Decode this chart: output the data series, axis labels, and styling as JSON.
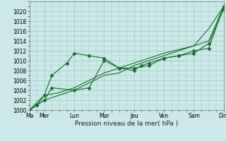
{
  "xlabel": "Pression niveau de la mer( hPa )",
  "ylim": [
    1000,
    1022
  ],
  "yticks": [
    1000,
    1002,
    1004,
    1006,
    1008,
    1010,
    1012,
    1014,
    1016,
    1018,
    1020
  ],
  "xtick_labels": [
    "Ma",
    "Mer",
    "Lun",
    "Mar",
    "Jeu",
    "Ven",
    "Sam",
    "Dim"
  ],
  "xtick_positions": [
    0,
    1,
    3,
    5,
    7,
    9,
    11,
    13
  ],
  "xlim": [
    0,
    13
  ],
  "background_color": "#cce8e8",
  "grid_color": "#99ccbb",
  "line_color": "#1a6e2e",
  "series": [
    {
      "x": [
        0,
        0.5,
        1,
        1.5,
        2.5,
        3,
        4,
        5,
        6,
        7,
        7.5,
        8,
        9,
        10,
        11,
        12,
        13
      ],
      "y": [
        1000,
        1001,
        1003,
        1007,
        1009.5,
        1011.5,
        1011,
        1010.5,
        1008.5,
        1008,
        1009,
        1009.5,
        1010.5,
        1011,
        1012,
        1012.5,
        1021
      ],
      "marker": "D",
      "markersize": 2.5
    },
    {
      "x": [
        0,
        0.5,
        1,
        1.5,
        3,
        4,
        5,
        6,
        7,
        8,
        9,
        10,
        11,
        12,
        13
      ],
      "y": [
        1000,
        1001,
        1002,
        1004.5,
        1004,
        1004.5,
        1010,
        1008.5,
        1008.5,
        1009,
        1010.5,
        1011,
        1011.5,
        1013.5,
        1020.5
      ],
      "marker": "D",
      "markersize": 2.5
    },
    {
      "x": [
        0,
        1,
        2,
        3,
        4,
        5,
        6,
        7,
        8,
        9,
        10,
        11,
        12,
        13
      ],
      "y": [
        1000,
        1002,
        1003,
        1004,
        1005.5,
        1007,
        1007.5,
        1009,
        1010,
        1011,
        1012,
        1013,
        1014,
        1021
      ],
      "marker": null,
      "markersize": 0
    },
    {
      "x": [
        0,
        1,
        2,
        3,
        5,
        7,
        9,
        11,
        12,
        13
      ],
      "y": [
        1000,
        1003,
        1003.5,
        1004.5,
        1007.5,
        1009.5,
        1011.5,
        1013,
        1016.5,
        1021
      ],
      "marker": null,
      "markersize": 0
    }
  ]
}
